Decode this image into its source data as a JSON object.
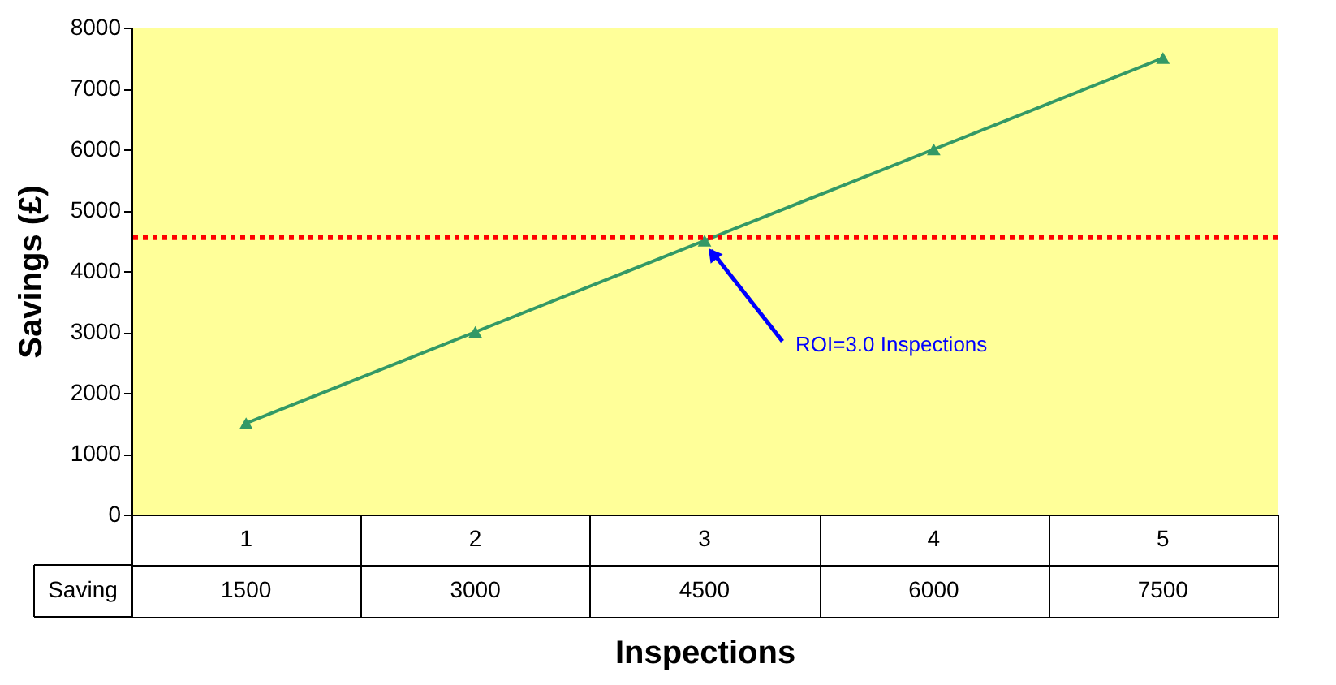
{
  "chart_data": {
    "type": "line",
    "xlabel": "Inspections",
    "ylabel": "Savings (£)",
    "categories": [
      "1",
      "2",
      "3",
      "4",
      "5"
    ],
    "series": [
      {
        "name": "Saving",
        "color": "#339966",
        "values": [
          1500,
          3000,
          4500,
          6000,
          7500
        ]
      }
    ],
    "marker": "triangle",
    "ylim": [
      0,
      8000
    ],
    "yticks": [
      0,
      1000,
      2000,
      3000,
      4000,
      5000,
      6000,
      7000,
      8000
    ],
    "data_labels": true,
    "ref_lines": [
      {
        "axis": "y",
        "value": 4550,
        "color": "#ff0000",
        "line_style": "dotted"
      }
    ],
    "annotations": [
      {
        "text": "ROI=3.0 Inspections",
        "x": "3",
        "y": 4500
      }
    ]
  }
}
